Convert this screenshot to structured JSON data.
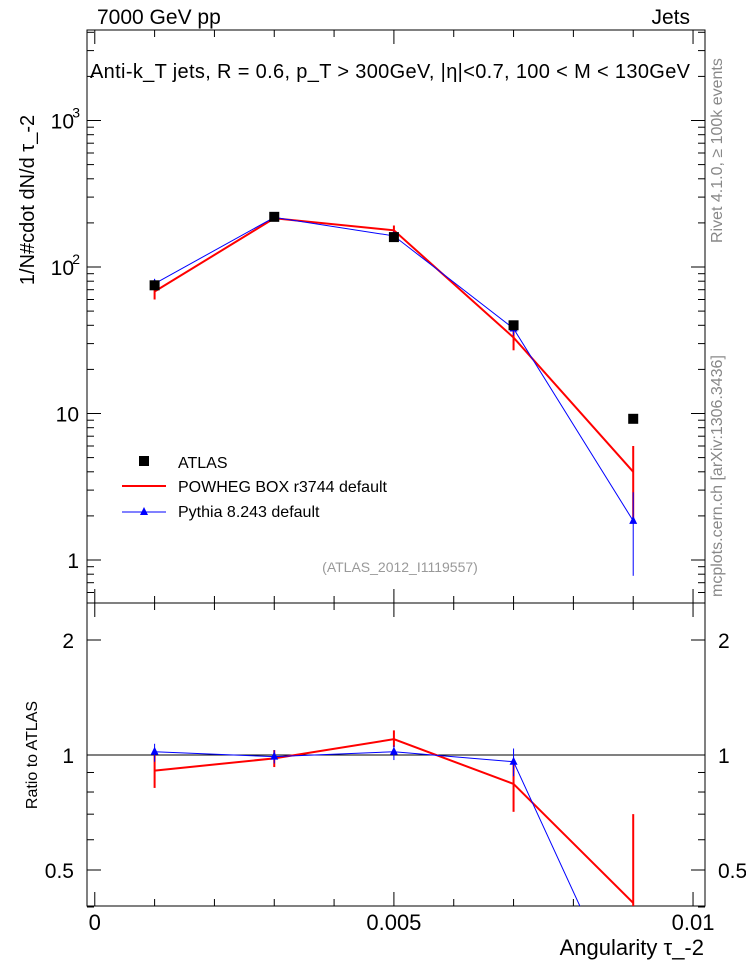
{
  "chart_data": {
    "type": "line",
    "header_left": "7000 GeV pp",
    "header_right": "Jets",
    "title": "Anti-k_T jets, R = 0.6, p_T > 300GeV, |η|<0.7, 100 < M < 130GeV",
    "ylabel": "1/N#cdot dN/d τ_-2",
    "ratio_ylabel": "Ratio to ATLAS",
    "xlabel": "Angularity τ_-2",
    "side_label_top": "Rivet 4.1.0, ≥ 100k events",
    "side_label_bottom": "mcplots.cern.ch [arXiv:1306.3436]",
    "analysis_label": "(ATLAS_2012_I1119557)",
    "xlim": [
      -0.00013,
      0.0102
    ],
    "ylim": [
      0.51,
      4200
    ],
    "yscale": "log",
    "ratio_ylim": [
      0.4,
      2.5
    ],
    "x_ticks": [
      "0",
      "0.005",
      "0.01"
    ],
    "y_ticks": [
      "1",
      "10",
      "10^2",
      "10^3"
    ],
    "ratio_ticks": [
      "0.5",
      "1",
      "2"
    ],
    "legend_position": "bottom-left",
    "x": [
      0.001,
      0.003,
      0.005,
      0.007,
      0.009
    ],
    "series": [
      {
        "name": "ATLAS",
        "color": "#000000",
        "marker": "square",
        "values": [
          75,
          220,
          160,
          40,
          9.2
        ],
        "ratio": [
          1,
          1,
          1,
          1,
          1
        ]
      },
      {
        "name": "POWHEG BOX r3744 default",
        "color": "#ff0000",
        "marker": "none",
        "values": [
          68,
          215,
          178,
          33,
          4.0
        ],
        "err_low": [
          60,
          205,
          165,
          27,
          1.8
        ],
        "err_high": [
          77,
          225,
          192,
          39,
          6.0
        ],
        "ratio": [
          0.91,
          0.98,
          1.1,
          0.84,
          0.41
        ],
        "ratio_low": [
          0.82,
          0.93,
          1.05,
          0.71,
          0.2
        ],
        "ratio_high": [
          1.0,
          1.03,
          1.16,
          0.97,
          0.7
        ]
      },
      {
        "name": "Pythia 8.243 default",
        "color": "#0000ff",
        "marker": "triangle",
        "values": [
          77,
          218,
          163,
          38,
          1.85
        ],
        "err_low": [
          71,
          212,
          157,
          34,
          0.78
        ],
        "err_high": [
          83,
          224,
          169,
          42,
          2.9
        ],
        "ratio": [
          1.02,
          0.99,
          1.02,
          0.96,
          0.2
        ],
        "ratio_low": [
          0.96,
          0.95,
          0.97,
          0.88,
          0.1
        ],
        "ratio_high": [
          1.07,
          1.03,
          1.06,
          1.04,
          0.3
        ]
      }
    ]
  }
}
